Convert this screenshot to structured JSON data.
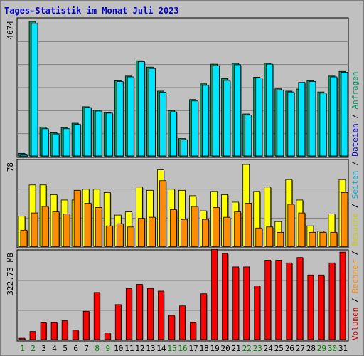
{
  "chart_data": {
    "type": "bar",
    "title": "Tages-Statistik im Monat Juli 2023",
    "categories": [
      "1",
      "2",
      "3",
      "4",
      "5",
      "6",
      "7",
      "8",
      "9",
      "10",
      "11",
      "12",
      "13",
      "14",
      "15",
      "16",
      "17",
      "18",
      "19",
      "20",
      "21",
      "22",
      "23",
      "24",
      "25",
      "26",
      "27",
      "28",
      "29",
      "30",
      "31"
    ],
    "weekend_days": [
      "1",
      "2",
      "8",
      "9",
      "15",
      "16",
      "22",
      "23",
      "29",
      "30"
    ],
    "panels": [
      {
        "name": "top",
        "max_label": "4674",
        "ymax": 4674,
        "series": [
          {
            "name": "Anfragen",
            "color": "#009966",
            "values": [
              90,
              4650,
              1000,
              800,
              980,
              1130,
              1700,
              1580,
              1500,
              2600,
              2760,
              3290,
              3070,
              2240,
              1570,
              600,
              1950,
              2490,
              3170,
              2670,
              3200,
              1450,
              2720,
              3200,
              2320,
              2240,
              2310,
              2600,
              2210,
              2760,
              2920
            ]
          },
          {
            "name": "Seiten",
            "color": "#00e5ff",
            "values": [
              60,
              4580,
              940,
              760,
              940,
              1090,
              1670,
              1550,
              1480,
              2570,
              2730,
              3260,
              3020,
              2200,
              1520,
              560,
              1900,
              2440,
              3120,
              2610,
              3150,
              1410,
              2690,
              3170,
              2280,
              2210,
              2540,
              2570,
              2170,
              2730,
              2890
            ]
          }
        ]
      },
      {
        "name": "middle",
        "max_label": "78",
        "ymax": 78,
        "series": [
          {
            "name": "Besuche",
            "color": "#ffff00",
            "values": [
              28,
              57,
              57,
              48,
              43,
              43,
              53,
              53,
              50,
              29,
              32,
              55,
              52,
              71,
              53,
              52,
              47,
              33,
              51,
              48,
              41,
              76,
              51,
              55,
              23,
              62,
              43,
              19,
              14,
              30,
              62
            ]
          },
          {
            "name": "Rechner",
            "color": "#ff8c00",
            "values": [
              15,
              31,
              37,
              32,
              30,
              52,
              40,
              36,
              19,
              21,
              18,
              26,
              27,
              61,
              34,
              25,
              37,
              25,
              36,
              27,
              32,
              40,
              17,
              18,
              13,
              39,
              31,
              13,
              13,
              13,
              50
            ]
          }
        ]
      },
      {
        "name": "bottom",
        "max_label": "322.73 MB",
        "ymax": 322.73,
        "series": [
          {
            "name": "Volumen",
            "color": "#ff0000",
            "values": [
              5,
              30,
              65,
              65,
              70,
              35,
              105,
              175,
              25,
              130,
              190,
              205,
              190,
              180,
              90,
              125,
              65,
              170,
              335,
              320,
              270,
              270,
              200,
              295,
              295,
              285,
              305,
              240,
              240,
              285,
              325
            ]
          }
        ]
      }
    ]
  },
  "right_legend": {
    "items": [
      {
        "label": "Volumen",
        "color": "#cc0000"
      },
      {
        "label": "Rechner",
        "color": "#ff8c00"
      },
      {
        "label": "Besuche",
        "color": "#cccc00"
      },
      {
        "label": "Seiten",
        "color": "#00aacc"
      },
      {
        "label": "Dateien",
        "color": "#0000cc"
      },
      {
        "label": "Anfragen",
        "color": "#009966"
      }
    ],
    "separator": "/"
  }
}
